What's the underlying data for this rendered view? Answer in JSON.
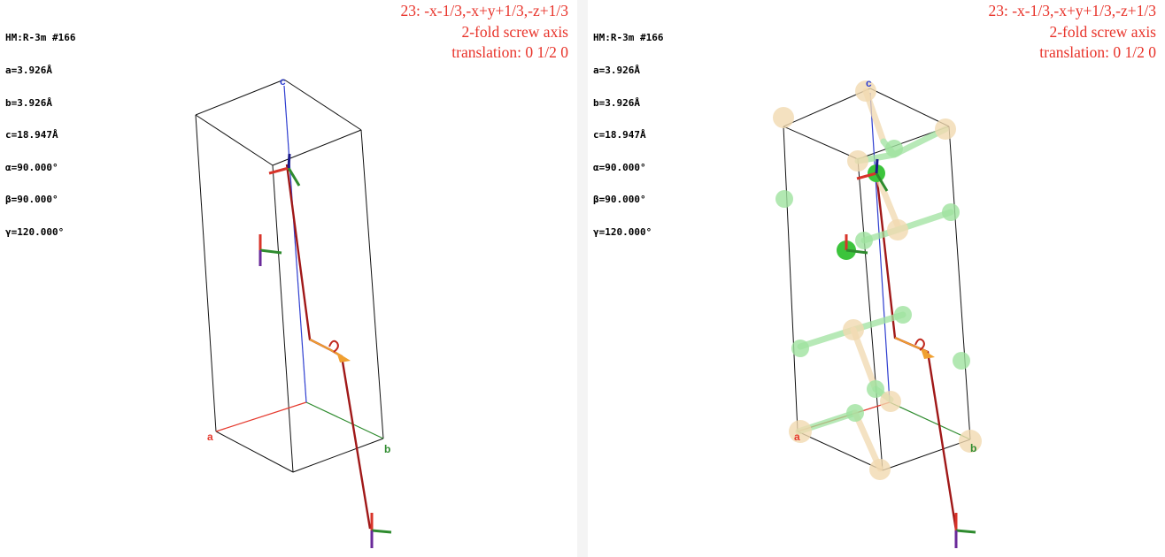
{
  "colors": {
    "symop_text": "#e8332a",
    "axis_a": "#e53a2e",
    "axis_b": "#2e8b2e",
    "axis_c": "#2f3fd0",
    "screw_axis": "#a01818",
    "atom_light": "#f1d9b0",
    "atom_green": "#7fdc7f",
    "atom_green_solid": "#3cc43c"
  },
  "panels": [
    {
      "cell_info": [
        "HM:R-3m #166",
        "a=3.926Å",
        "b=3.926Å",
        "c=18.947Å",
        "α=90.000°",
        "β=90.000°",
        "γ=120.000°"
      ],
      "operation": {
        "line1": "23: -x-1/3,-x+y+1/3,-z+1/3",
        "line2": "2-fold screw axis",
        "line3": "translation: 0 1/2 0"
      },
      "axis_labels": {
        "a": "a",
        "b": "b",
        "c": "c"
      }
    },
    {
      "cell_info": [
        "HM:R-3m #166",
        "a=3.926Å",
        "b=3.926Å",
        "c=18.947Å",
        "α=90.000°",
        "β=90.000°",
        "γ=120.000°"
      ],
      "operation": {
        "line1": "23: -x-1/3,-x+y+1/3,-z+1/3",
        "line2": "2-fold screw axis",
        "line3": "translation: 0 1/2 0"
      },
      "axis_labels": {
        "a": "a",
        "b": "b",
        "c": "c"
      }
    }
  ]
}
